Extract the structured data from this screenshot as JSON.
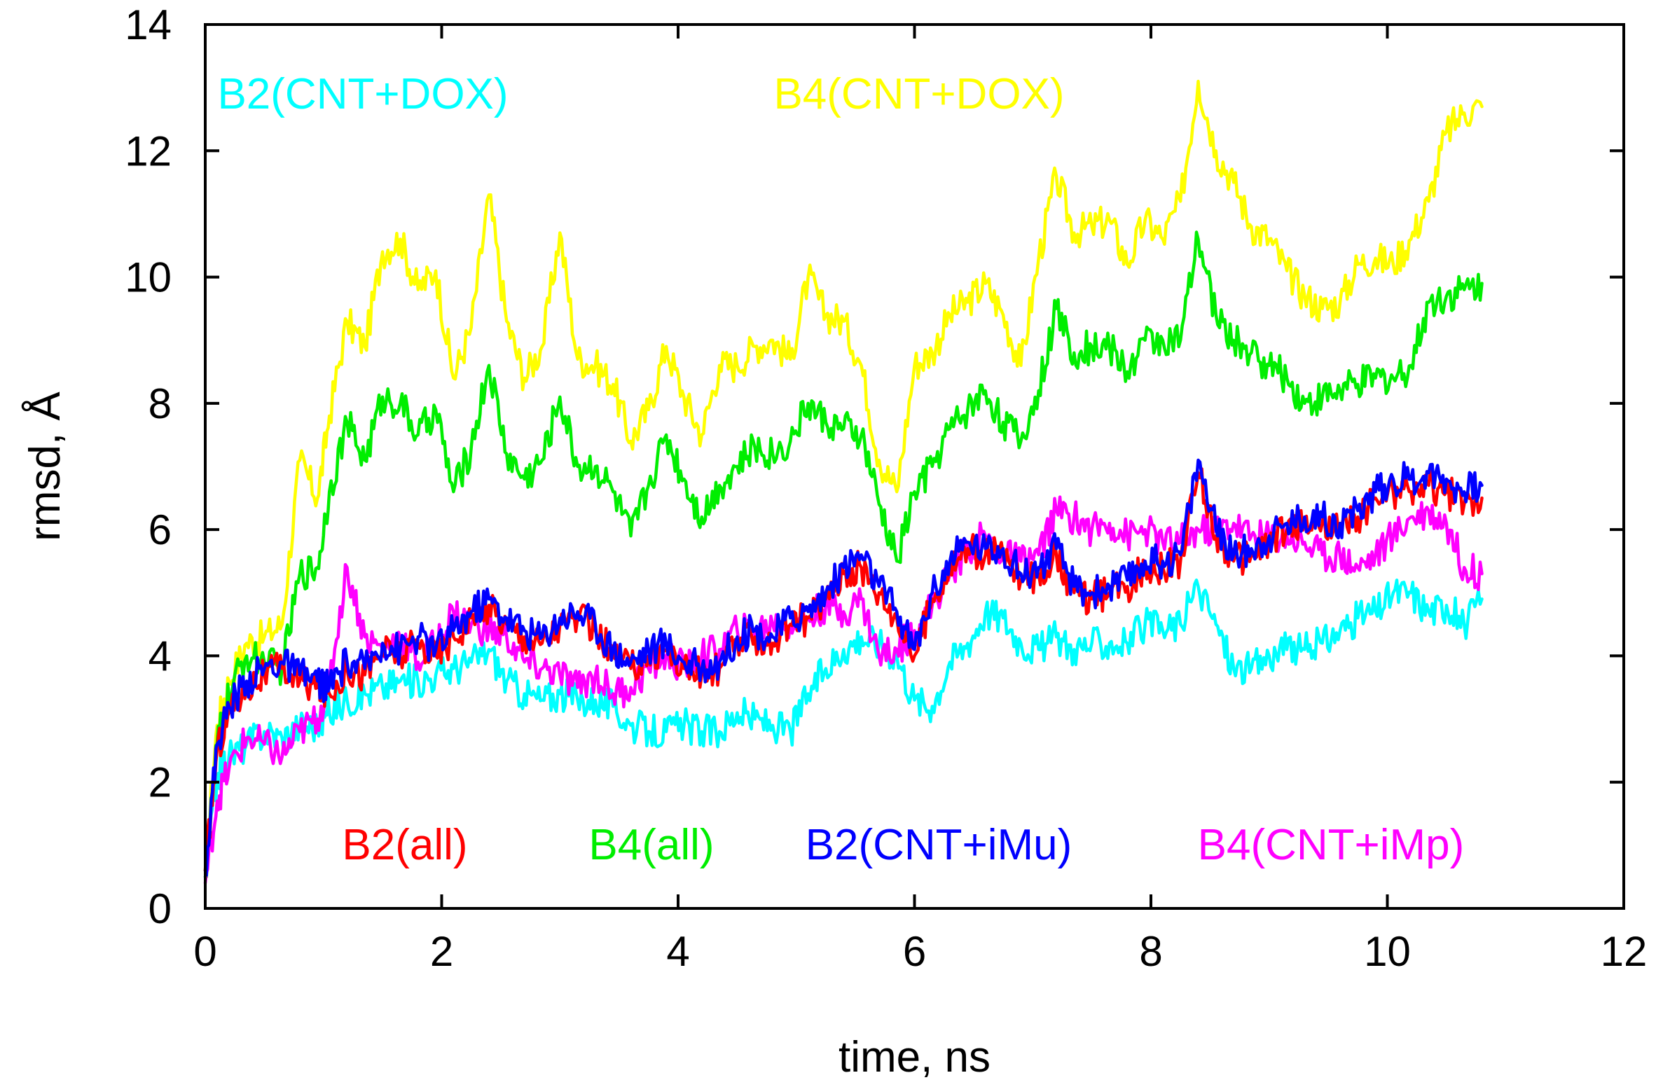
{
  "chart_data": {
    "type": "line",
    "xlabel": "time, ns",
    "ylabel": "rmsd, Å",
    "xlim": [
      0,
      12
    ],
    "ylim": [
      0,
      14
    ],
    "xticks": [
      0,
      2,
      4,
      6,
      8,
      10,
      12
    ],
    "yticks": [
      0,
      2,
      4,
      6,
      8,
      10,
      12,
      14
    ],
    "grid": false,
    "legend_rows": [
      [
        "B2(CNT+DOX)",
        "B4(CNT+DOX)"
      ],
      [
        "B2(all)",
        "B4(all)",
        "B2(CNT+iMu)",
        "B4(CNT+iMp)"
      ]
    ],
    "series": [
      {
        "name": "B4(CNT+DOX)",
        "color": "#ffff00",
        "x": [
          0,
          0.1,
          0.2,
          0.35,
          0.5,
          0.65,
          0.8,
          0.95,
          1.05,
          1.2,
          1.35,
          1.5,
          1.65,
          1.8,
          1.95,
          2.1,
          2.25,
          2.4,
          2.55,
          2.7,
          2.85,
          3.0,
          3.15,
          3.3,
          3.45,
          3.6,
          3.75,
          3.9,
          4.05,
          4.2,
          4.35,
          4.5,
          4.65,
          4.8,
          4.95,
          5.1,
          5.25,
          5.4,
          5.55,
          5.7,
          5.85,
          6.0,
          6.15,
          6.3,
          6.45,
          6.6,
          6.75,
          6.9,
          7.05,
          7.2,
          7.35,
          7.5,
          7.65,
          7.8,
          7.95,
          8.1,
          8.25,
          8.4,
          8.55,
          8.7,
          8.85,
          9.0,
          9.15,
          9.3,
          9.45,
          9.6,
          9.75,
          9.9,
          10.05,
          10.2,
          10.35,
          10.5,
          10.65,
          10.8
        ],
        "y": [
          0.6,
          2.9,
          3.6,
          4.2,
          4.3,
          4.5,
          7.1,
          6.5,
          7.8,
          9.3,
          8.9,
          10.4,
          10.6,
          9.8,
          10.1,
          8.4,
          9.2,
          11.3,
          9.3,
          8.4,
          8.9,
          10.7,
          8.7,
          8.6,
          8.3,
          7.4,
          7.9,
          8.9,
          8.1,
          7.5,
          8.6,
          8.6,
          8.9,
          9.0,
          8.7,
          10.0,
          9.4,
          9.3,
          8.6,
          7.1,
          6.6,
          8.6,
          8.8,
          9.4,
          9.6,
          9.9,
          9.4,
          8.6,
          10.3,
          11.6,
          10.7,
          10.8,
          10.9,
          10.2,
          10.9,
          10.6,
          11.2,
          13.1,
          12.0,
          11.5,
          10.8,
          10.6,
          10.1,
          9.7,
          9.5,
          9.6,
          10.2,
          10.3,
          10.2,
          10.6,
          11.2,
          12.3,
          12.6,
          12.7
        ]
      },
      {
        "name": "B4(all)",
        "color": "#00ee00",
        "x": [
          0,
          0.1,
          0.2,
          0.35,
          0.5,
          0.65,
          0.8,
          0.95,
          1.05,
          1.2,
          1.35,
          1.5,
          1.65,
          1.8,
          1.95,
          2.1,
          2.25,
          2.4,
          2.55,
          2.7,
          2.85,
          3.0,
          3.15,
          3.3,
          3.45,
          3.6,
          3.75,
          3.9,
          4.05,
          4.2,
          4.35,
          4.5,
          4.65,
          4.8,
          4.95,
          5.1,
          5.25,
          5.4,
          5.55,
          5.7,
          5.85,
          6.0,
          6.15,
          6.3,
          6.45,
          6.6,
          6.75,
          6.9,
          7.05,
          7.2,
          7.35,
          7.5,
          7.65,
          7.8,
          7.95,
          8.1,
          8.25,
          8.4,
          8.55,
          8.7,
          8.85,
          9.0,
          9.15,
          9.3,
          9.45,
          9.6,
          9.75,
          9.9,
          10.05,
          10.2,
          10.35,
          10.5,
          10.65,
          10.8
        ],
        "y": [
          0.5,
          2.6,
          3.4,
          4.0,
          3.9,
          3.8,
          5.3,
          5.4,
          6.6,
          7.7,
          7.1,
          8.1,
          8.0,
          7.5,
          7.9,
          6.6,
          7.3,
          8.6,
          7.2,
          6.8,
          7.1,
          8.1,
          7.0,
          7.0,
          6.6,
          5.9,
          6.7,
          7.5,
          6.8,
          6.2,
          6.7,
          7.0,
          7.3,
          7.2,
          7.4,
          8.0,
          7.7,
          7.6,
          7.5,
          6.4,
          5.5,
          6.6,
          7.0,
          7.6,
          7.9,
          8.2,
          7.7,
          7.4,
          8.2,
          9.5,
          8.8,
          8.9,
          8.9,
          8.5,
          9.0,
          9.0,
          9.0,
          10.6,
          9.4,
          9.0,
          8.8,
          8.6,
          8.4,
          8.0,
          8.1,
          8.2,
          8.3,
          8.4,
          8.4,
          8.6,
          9.6,
          9.7,
          9.8,
          9.9
        ]
      },
      {
        "name": "B2(CNT+DOX)",
        "color": "#00ffff",
        "x": [
          0,
          0.1,
          0.2,
          0.35,
          0.5,
          0.65,
          0.8,
          0.95,
          1.05,
          1.2,
          1.35,
          1.5,
          1.65,
          1.8,
          1.95,
          2.1,
          2.25,
          2.4,
          2.55,
          2.7,
          2.85,
          3.0,
          3.15,
          3.3,
          3.45,
          3.6,
          3.75,
          3.9,
          4.05,
          4.2,
          4.35,
          4.5,
          4.65,
          4.8,
          4.95,
          5.1,
          5.25,
          5.4,
          5.55,
          5.7,
          5.85,
          6.0,
          6.15,
          6.3,
          6.45,
          6.6,
          6.75,
          6.9,
          7.05,
          7.2,
          7.35,
          7.5,
          7.65,
          7.8,
          7.95,
          8.1,
          8.25,
          8.4,
          8.55,
          8.7,
          8.85,
          9.0,
          9.15,
          9.3,
          9.45,
          9.6,
          9.75,
          9.9,
          10.05,
          10.2,
          10.35,
          10.5,
          10.65,
          10.8
        ],
        "y": [
          0.5,
          2.1,
          2.4,
          2.6,
          2.8,
          2.7,
          2.9,
          2.9,
          3.1,
          3.3,
          3.4,
          3.5,
          3.6,
          3.6,
          3.7,
          3.8,
          3.9,
          4.1,
          3.6,
          3.4,
          3.3,
          3.4,
          3.3,
          3.3,
          3.2,
          2.9,
          2.8,
          2.8,
          2.9,
          2.8,
          2.8,
          3.1,
          3.0,
          2.9,
          2.8,
          3.4,
          3.8,
          4.1,
          4.3,
          4.2,
          4.0,
          3.3,
          3.2,
          3.9,
          4.2,
          4.7,
          4.6,
          4.2,
          4.1,
          4.3,
          4.1,
          4.2,
          4.2,
          4.2,
          4.5,
          4.4,
          4.5,
          5.1,
          4.5,
          3.8,
          3.8,
          4.0,
          4.1,
          4.1,
          4.2,
          4.4,
          4.6,
          4.7,
          5.0,
          5.0,
          4.7,
          4.8,
          4.5,
          4.9
        ]
      },
      {
        "name": "B4(CNT+iMp)",
        "color": "#ff00ff",
        "x": [
          0,
          0.1,
          0.2,
          0.35,
          0.5,
          0.65,
          0.8,
          0.95,
          1.05,
          1.2,
          1.35,
          1.5,
          1.65,
          1.8,
          1.95,
          2.1,
          2.25,
          2.4,
          2.55,
          2.7,
          2.85,
          3.0,
          3.15,
          3.3,
          3.45,
          3.6,
          3.75,
          3.9,
          4.05,
          4.2,
          4.35,
          4.5,
          4.65,
          4.8,
          4.95,
          5.1,
          5.25,
          5.4,
          5.55,
          5.7,
          5.85,
          6.0,
          6.15,
          6.3,
          6.45,
          6.6,
          6.75,
          6.9,
          7.05,
          7.2,
          7.35,
          7.5,
          7.65,
          7.8,
          7.95,
          8.1,
          8.25,
          8.4,
          8.55,
          8.7,
          8.85,
          9.0,
          9.15,
          9.3,
          9.45,
          9.6,
          9.75,
          9.9,
          10.05,
          10.2,
          10.35,
          10.5,
          10.65,
          10.8
        ],
        "y": [
          0.4,
          1.7,
          2.2,
          2.7,
          2.6,
          2.4,
          2.8,
          3.0,
          3.6,
          5.4,
          4.3,
          4.1,
          4.3,
          3.9,
          4.2,
          4.7,
          4.5,
          4.4,
          4.3,
          3.9,
          3.8,
          3.7,
          3.5,
          3.7,
          3.4,
          3.5,
          3.8,
          4.0,
          3.8,
          4.0,
          4.1,
          4.4,
          4.4,
          4.5,
          4.5,
          4.6,
          4.8,
          4.7,
          4.9,
          4.0,
          4.1,
          4.4,
          4.8,
          5.3,
          5.7,
          5.9,
          5.6,
          5.5,
          5.6,
          6.3,
          6.2,
          6.0,
          6.1,
          5.9,
          6.0,
          5.8,
          5.8,
          6.0,
          6.0,
          6.1,
          5.9,
          5.9,
          5.9,
          5.8,
          5.6,
          5.6,
          5.4,
          5.6,
          5.9,
          6.2,
          6.3,
          6.1,
          5.4,
          5.3
        ]
      },
      {
        "name": "B2(all)",
        "color": "#ff0000",
        "x": [
          0,
          0.1,
          0.2,
          0.35,
          0.5,
          0.65,
          0.8,
          0.95,
          1.05,
          1.2,
          1.35,
          1.5,
          1.65,
          1.8,
          1.95,
          2.1,
          2.25,
          2.4,
          2.55,
          2.7,
          2.85,
          3.0,
          3.15,
          3.3,
          3.45,
          3.6,
          3.75,
          3.9,
          4.05,
          4.2,
          4.35,
          4.5,
          4.65,
          4.8,
          4.95,
          5.1,
          5.25,
          5.4,
          5.55,
          5.7,
          5.85,
          6.0,
          6.15,
          6.3,
          6.45,
          6.6,
          6.75,
          6.9,
          7.05,
          7.2,
          7.35,
          7.5,
          7.65,
          7.8,
          7.95,
          8.1,
          8.25,
          8.4,
          8.55,
          8.7,
          8.85,
          9.0,
          9.15,
          9.3,
          9.45,
          9.6,
          9.75,
          9.9,
          10.05,
          10.2,
          10.35,
          10.5,
          10.65,
          10.8
        ],
        "y": [
          0.6,
          2.5,
          3.1,
          3.5,
          3.7,
          3.8,
          3.6,
          3.5,
          3.4,
          3.8,
          3.7,
          4.1,
          4.0,
          4.2,
          4.0,
          4.3,
          4.6,
          4.8,
          4.5,
          4.3,
          4.2,
          4.5,
          4.6,
          4.4,
          4.0,
          3.8,
          4.0,
          4.1,
          3.8,
          3.7,
          3.8,
          4.2,
          4.3,
          4.2,
          4.5,
          4.6,
          4.9,
          5.3,
          5.4,
          5.0,
          4.6,
          4.0,
          4.9,
          5.4,
          5.7,
          5.6,
          5.6,
          5.2,
          5.3,
          5.6,
          5.0,
          4.9,
          5.0,
          5.1,
          5.4,
          5.4,
          5.5,
          6.9,
          5.9,
          5.5,
          5.6,
          5.8,
          6.0,
          6.1,
          6.1,
          6.0,
          6.2,
          6.5,
          6.6,
          6.6,
          6.7,
          6.6,
          6.4,
          6.5
        ]
      },
      {
        "name": "B2(CNT+iMu)",
        "color": "#0000ff",
        "x": [
          0,
          0.1,
          0.2,
          0.35,
          0.5,
          0.65,
          0.8,
          0.95,
          1.05,
          1.2,
          1.35,
          1.5,
          1.65,
          1.8,
          1.95,
          2.1,
          2.25,
          2.4,
          2.55,
          2.7,
          2.85,
          3.0,
          3.15,
          3.3,
          3.45,
          3.6,
          3.75,
          3.9,
          4.05,
          4.2,
          4.35,
          4.5,
          4.65,
          4.8,
          4.95,
          5.1,
          5.25,
          5.4,
          5.55,
          5.7,
          5.85,
          6.0,
          6.15,
          6.3,
          6.45,
          6.6,
          6.75,
          6.9,
          7.05,
          7.2,
          7.35,
          7.5,
          7.65,
          7.8,
          7.95,
          8.1,
          8.25,
          8.4,
          8.55,
          8.7,
          8.85,
          9.0,
          9.15,
          9.3,
          9.45,
          9.6,
          9.75,
          9.9,
          10.05,
          10.2,
          10.35,
          10.5,
          10.65,
          10.8
        ],
        "y": [
          0.6,
          2.6,
          3.2,
          3.6,
          3.8,
          3.9,
          3.7,
          3.6,
          3.5,
          3.9,
          3.8,
          4.2,
          4.1,
          4.3,
          4.1,
          4.4,
          4.7,
          4.9,
          4.6,
          4.4,
          4.3,
          4.6,
          4.7,
          4.5,
          4.1,
          3.9,
          4.1,
          4.2,
          3.9,
          3.8,
          3.9,
          4.3,
          4.4,
          4.3,
          4.6,
          4.7,
          5.0,
          5.4,
          5.6,
          5.1,
          4.7,
          4.1,
          5.0,
          5.5,
          5.8,
          5.7,
          5.7,
          5.3,
          5.4,
          5.7,
          5.1,
          5.0,
          5.1,
          5.2,
          5.5,
          5.5,
          5.6,
          7.1,
          6.0,
          5.6,
          5.7,
          5.9,
          6.1,
          6.2,
          6.2,
          6.1,
          6.3,
          6.6,
          6.8,
          6.8,
          6.9,
          6.8,
          6.6,
          6.7
        ]
      }
    ]
  }
}
